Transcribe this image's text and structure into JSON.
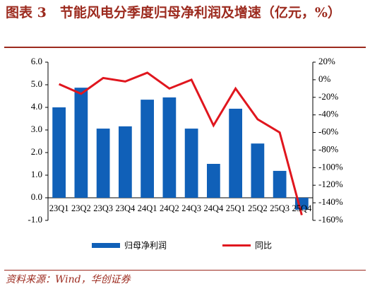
{
  "chart_data": {
    "type": "bar-line",
    "title": "图表 3　节能风电分季度归母净利润及增速（亿元，%）",
    "source": "资料来源：Wind，华创证券",
    "categories": [
      "23Q1",
      "23Q2",
      "23Q3",
      "23Q4",
      "24Q1",
      "24Q2",
      "24Q3",
      "24Q4",
      "25Q1",
      "25Q2",
      "25Q3",
      "25Q4"
    ],
    "series": [
      {
        "name": "归母净利润",
        "type": "bar",
        "color": "#1060b8",
        "values": [
          4.0,
          4.87,
          3.06,
          3.16,
          4.34,
          4.44,
          3.06,
          1.5,
          3.94,
          2.4,
          1.19,
          -0.53
        ]
      },
      {
        "name": "同比",
        "type": "line",
        "axis": "y2",
        "color": "#e0161e",
        "values": [
          -5,
          -16,
          2,
          -2,
          8,
          -10,
          0,
          -52,
          -10,
          -45,
          -60,
          -154
        ]
      }
    ],
    "ylim": [
      -1,
      6
    ],
    "yticks": [
      {
        "value": -1,
        "label": "-1.0"
      },
      {
        "value": 0,
        "label": "0.0"
      },
      {
        "value": 1,
        "label": "1.0"
      },
      {
        "value": 2,
        "label": "2.0"
      },
      {
        "value": 3,
        "label": "3.0"
      },
      {
        "value": 4,
        "label": "4.0"
      },
      {
        "value": 5,
        "label": "5.0"
      },
      {
        "value": 6,
        "label": "6.0"
      }
    ],
    "y2lim": [
      -160,
      20
    ],
    "y2ticks": [
      {
        "value": -160,
        "label": "-160%"
      },
      {
        "value": -140,
        "label": "-140%"
      },
      {
        "value": -120,
        "label": "-120%"
      },
      {
        "value": -100,
        "label": "-100%"
      },
      {
        "value": -80,
        "label": "-80%"
      },
      {
        "value": -60,
        "label": "-60%"
      },
      {
        "value": -40,
        "label": "-40%"
      },
      {
        "value": -20,
        "label": "-20%"
      },
      {
        "value": 0,
        "label": "0%"
      },
      {
        "value": 20,
        "label": "20%"
      }
    ],
    "legend": "bottom"
  }
}
